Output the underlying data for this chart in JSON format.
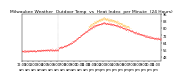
{
  "title": "Milwaukee Weather  Outdoor Temp  vs  Heat Index  per Minute  (24 Hours)",
  "title2": "per Minute (24 Hours)",
  "bg_color": "#ffffff",
  "plot_bg": "#ffffff",
  "temp_color": "#ff0000",
  "heat_color": "#ffaa00",
  "ylim": [
    44,
    96
  ],
  "ytick_vals": [
    48,
    56,
    64,
    72,
    80,
    88,
    96
  ],
  "n_points": 1440,
  "vline_x": 380,
  "vline_color": "#999999",
  "title_fontsize": 3.2,
  "tick_fontsize": 2.5,
  "dot_size": 0.4,
  "markersize": 0.4
}
